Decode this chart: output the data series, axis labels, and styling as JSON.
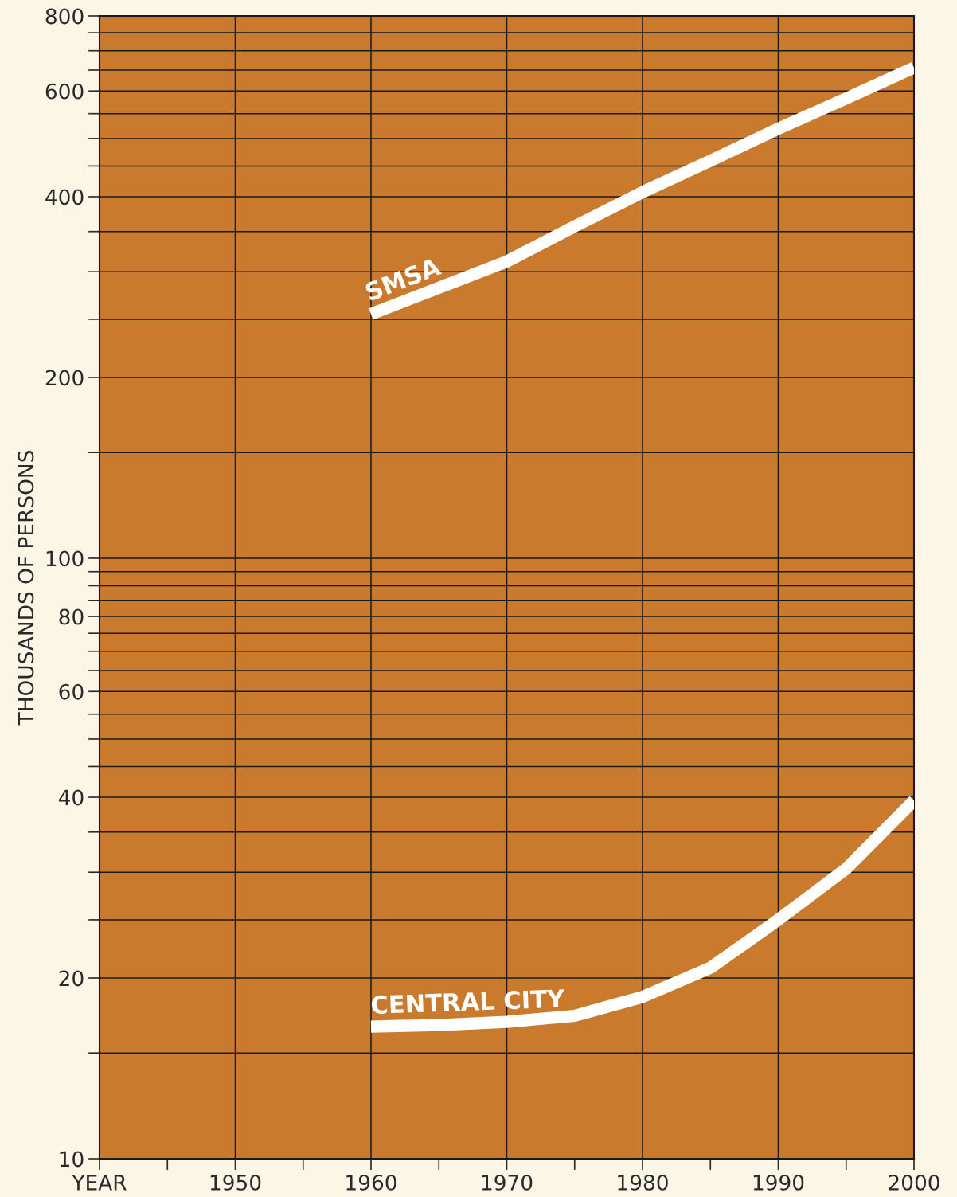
{
  "chart_data": {
    "type": "line",
    "ylabel": "THOUSANDS OF PERSONS",
    "log": "y",
    "grid": true,
    "marker": "none",
    "line_style": "solid",
    "xlim": [
      1940,
      2000
    ],
    "xticks": [
      {
        "value": 1940,
        "label": "YEAR"
      },
      {
        "value": 1945,
        "label": null
      },
      1950,
      {
        "value": 1955,
        "label": null
      },
      1960,
      {
        "value": 1965,
        "label": null
      },
      1970,
      {
        "value": 1975,
        "label": null
      },
      1980,
      {
        "value": 1985,
        "label": null
      },
      1990,
      {
        "value": 1995,
        "label": null
      },
      2000
    ],
    "ylim": [
      10,
      800
    ],
    "yticks": [
      10,
      {
        "value": 15,
        "label": null
      },
      20,
      {
        "value": 25,
        "label": null
      },
      {
        "value": 30,
        "label": null
      },
      {
        "value": 35,
        "label": null
      },
      40,
      {
        "value": 45,
        "label": null
      },
      {
        "value": 50,
        "label": null
      },
      {
        "value": 55,
        "label": null
      },
      60,
      {
        "value": 65,
        "label": null
      },
      {
        "value": 70,
        "label": null
      },
      {
        "value": 75,
        "label": null
      },
      80,
      {
        "value": 85,
        "label": null
      },
      {
        "value": 90,
        "label": null
      },
      {
        "value": 95,
        "label": null
      },
      100,
      {
        "value": 150,
        "label": null
      },
      200,
      {
        "value": 250,
        "label": null
      },
      {
        "value": 300,
        "label": null
      },
      {
        "value": 350,
        "label": null
      },
      400,
      {
        "value": 450,
        "label": null
      },
      {
        "value": 500,
        "label": null
      },
      {
        "value": 550,
        "label": null
      },
      600,
      {
        "value": 650,
        "label": null
      },
      {
        "value": 700,
        "label": null
      },
      {
        "value": 750,
        "label": null
      },
      800
    ],
    "series": [
      {
        "name": "SMSA",
        "color": "#ffffff",
        "x": [
          1960,
          1965,
          1970,
          1975,
          1980,
          1985,
          1990,
          1995,
          2000
        ],
        "values": [
          255,
          282,
          312,
          357,
          407,
          459,
          519,
          583,
          656
        ]
      },
      {
        "name": "CENTRAL CITY",
        "color": "#ffffff",
        "x": [
          1960,
          1965,
          1970,
          1975,
          1980,
          1985,
          1990,
          1995,
          2000
        ],
        "values": [
          16.6,
          16.7,
          16.9,
          17.3,
          18.6,
          20.8,
          25,
          30.4,
          39.5
        ]
      }
    ]
  }
}
